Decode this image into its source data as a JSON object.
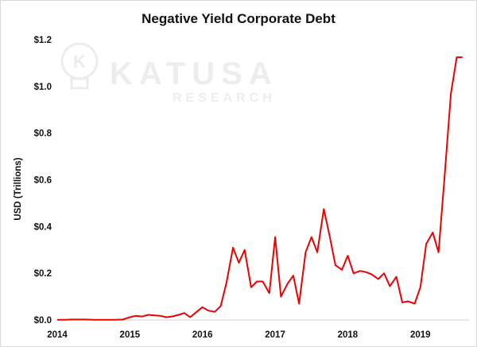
{
  "chart_data": {
    "type": "line",
    "title": "Negative Yield Corporate Debt",
    "xlabel": "",
    "ylabel": "USD (Trillions)",
    "xlim": [
      2014,
      2019.67
    ],
    "ylim": [
      0,
      1.2
    ],
    "xticks": [
      2014,
      2015,
      2016,
      2017,
      2018,
      2019
    ],
    "xtick_labels": [
      "2014",
      "2015",
      "2016",
      "2017",
      "2018",
      "2019"
    ],
    "yticks": [
      0,
      0.2,
      0.4,
      0.6,
      0.8,
      1.0,
      1.2
    ],
    "ytick_labels": [
      "$0.0",
      "$0.2",
      "$0.4",
      "$0.6",
      "$0.8",
      "$1.0",
      "$1.2"
    ],
    "grid": false,
    "line_color": "#ee0000",
    "series": [
      {
        "x": [
          2014.0,
          2014.1,
          2014.2,
          2014.3,
          2014.4,
          2014.5,
          2014.6,
          2014.7,
          2014.8,
          2014.9,
          2015.0,
          2015.08,
          2015.17,
          2015.25,
          2015.33,
          2015.42,
          2015.5,
          2015.58,
          2015.67,
          2015.75,
          2015.83,
          2015.92,
          2016.0,
          2016.08,
          2016.17,
          2016.25,
          2016.33,
          2016.42,
          2016.5,
          2016.58,
          2016.67,
          2016.75,
          2016.83,
          2016.92,
          2017.0,
          2017.08,
          2017.17,
          2017.25,
          2017.33,
          2017.42,
          2017.5,
          2017.58,
          2017.67,
          2017.75,
          2017.83,
          2017.92,
          2018.0,
          2018.08,
          2018.17,
          2018.25,
          2018.33,
          2018.42,
          2018.5,
          2018.58,
          2018.67,
          2018.75,
          2018.83,
          2018.92,
          2019.0,
          2019.08,
          2019.17,
          2019.25,
          2019.33,
          2019.42,
          2019.5,
          2019.58
        ],
        "values": [
          0.001,
          0.001,
          0.002,
          0.002,
          0.002,
          0.001,
          0.001,
          0.001,
          0.001,
          0.002,
          0.012,
          0.018,
          0.015,
          0.022,
          0.02,
          0.018,
          0.012,
          0.015,
          0.022,
          0.03,
          0.012,
          0.035,
          0.055,
          0.04,
          0.035,
          0.06,
          0.16,
          0.31,
          0.245,
          0.3,
          0.14,
          0.165,
          0.165,
          0.115,
          0.355,
          0.1,
          0.155,
          0.19,
          0.07,
          0.29,
          0.355,
          0.29,
          0.475,
          0.36,
          0.235,
          0.215,
          0.275,
          0.2,
          0.21,
          0.205,
          0.195,
          0.175,
          0.2,
          0.145,
          0.185,
          0.075,
          0.08,
          0.07,
          0.14,
          0.325,
          0.375,
          0.29,
          0.6,
          0.97,
          1.125,
          1.125
        ]
      }
    ]
  }
}
